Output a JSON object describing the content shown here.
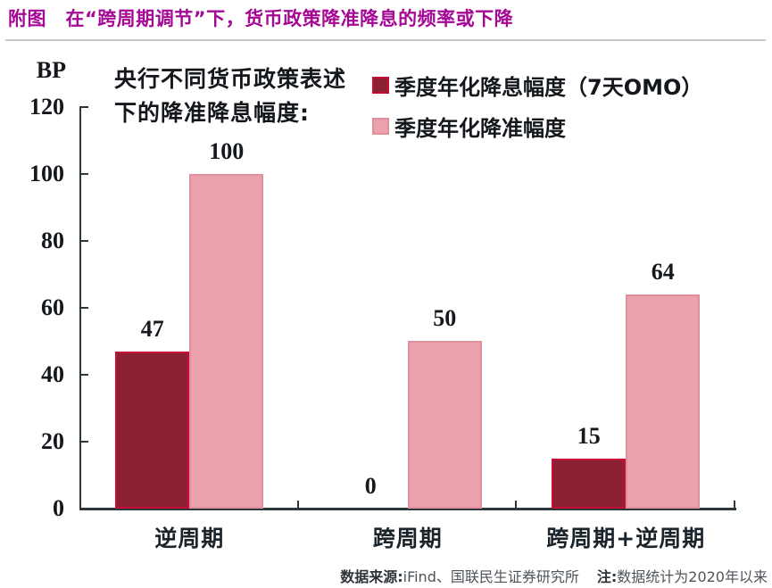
{
  "page_title": "附图　在“跨周期调节”下，货币政策降准降息的频率或下降",
  "chart_data": {
    "type": "bar",
    "unit_label": "BP",
    "annotation_lines": [
      "央行不同货币政策表述",
      "下的降准降息幅度:"
    ],
    "categories": [
      "逆周期",
      "跨周期",
      "跨周期+逆周期"
    ],
    "series": [
      {
        "name": "季度年化降息幅度（7天OMO）",
        "values": [
          47,
          0,
          15
        ],
        "fill": "#8B2133",
        "border": "#C40E38"
      },
      {
        "name": "季度年化降准幅度",
        "values": [
          100,
          50,
          64
        ],
        "fill": "#ECA2AC",
        "border": "#E28F9D"
      }
    ],
    "ylim": [
      0,
      120
    ],
    "yticks": [
      0,
      20,
      40,
      60,
      80,
      100,
      120
    ],
    "grid": false,
    "legend_position": "top-right",
    "value_labels": true
  },
  "footer": {
    "source_label": "数据来源:",
    "source_text": "iFind、国联民生证券研究所",
    "note_label": "注:",
    "note_text": "数据统计为2020年以来"
  },
  "colors": {
    "title": "#A50895",
    "axis": "#2D373E",
    "text": "#14181D",
    "separator": "#C9C9C9"
  }
}
